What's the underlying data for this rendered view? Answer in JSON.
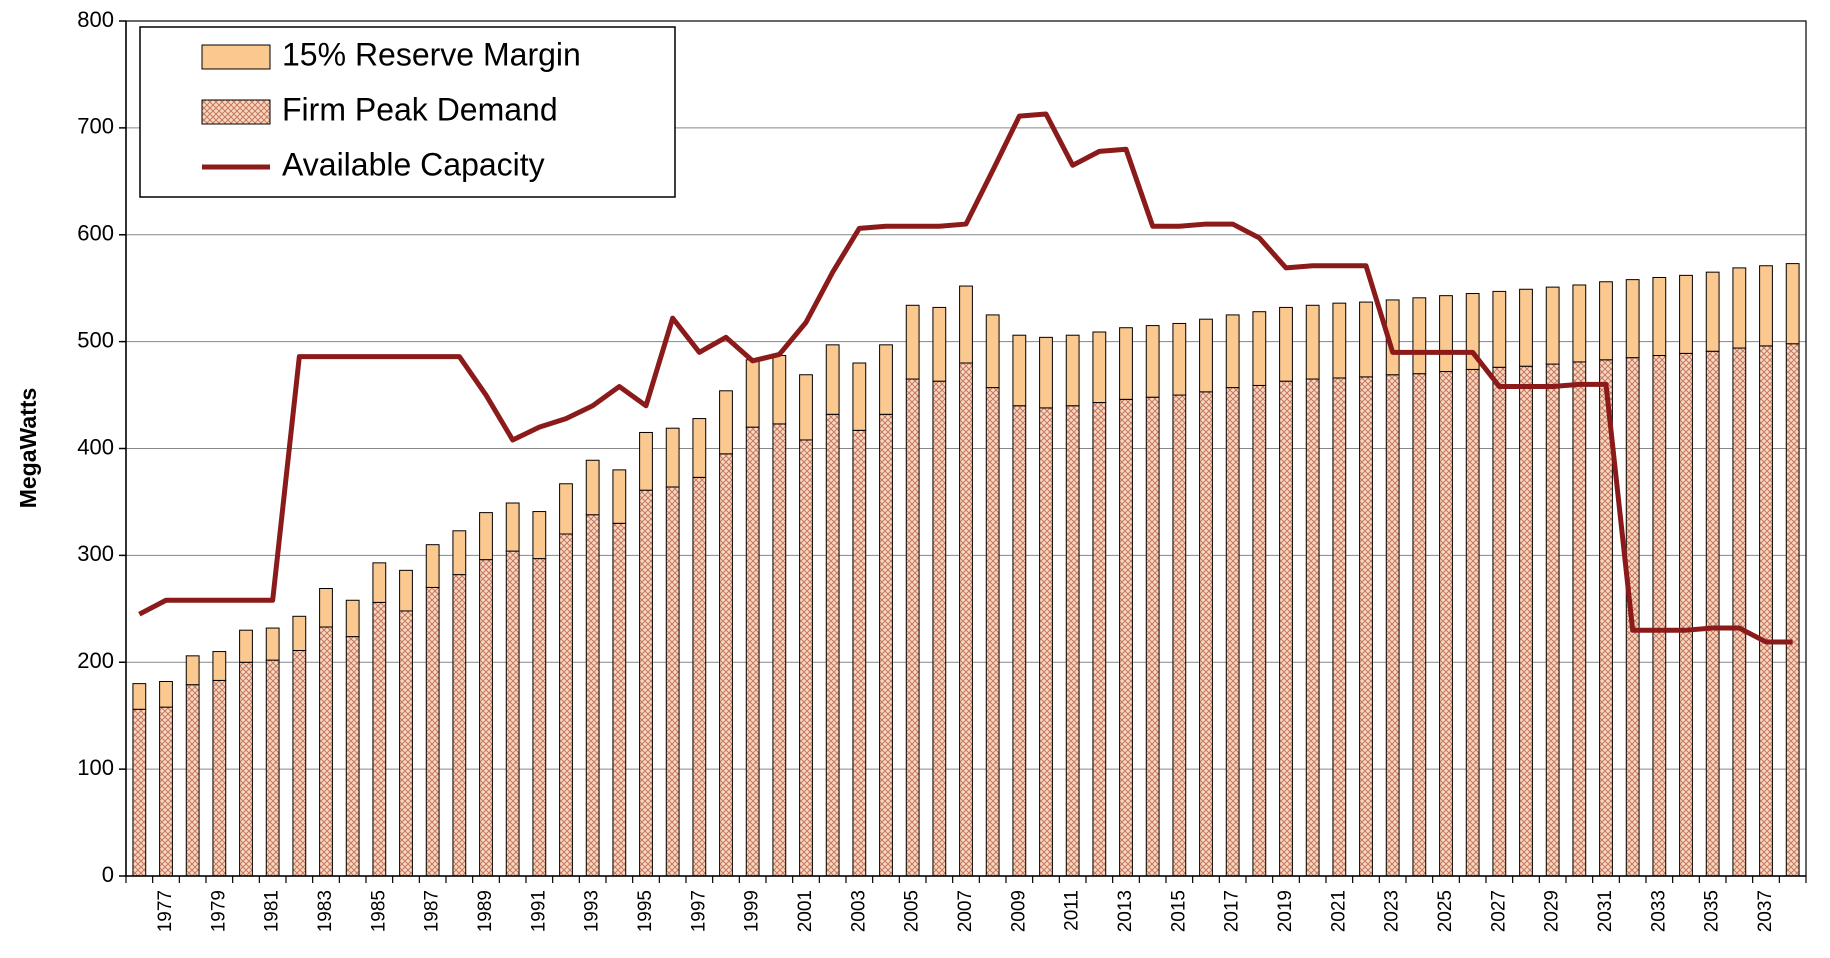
{
  "chart_data": {
    "type": "bar",
    "stacked": true,
    "y_label": "MegaWatts",
    "categories": [
      null,
      "1977",
      null,
      "1979",
      null,
      "1981",
      null,
      "1983",
      null,
      "1985",
      null,
      "1987",
      null,
      "1989",
      null,
      "1991",
      null,
      "1993",
      null,
      "1995",
      null,
      "1997",
      null,
      "1999",
      null,
      "2001",
      null,
      "2003",
      null,
      "2005",
      null,
      "2007",
      null,
      "2009",
      null,
      "2011",
      null,
      "2013",
      null,
      "2015",
      null,
      "2017",
      null,
      "2019",
      null,
      "2021",
      null,
      "2023",
      null,
      "2025",
      null,
      "2027",
      null,
      "2029",
      null,
      "2031",
      null,
      "2033",
      null,
      "2035",
      null,
      "2037",
      null
    ],
    "series": [
      {
        "name": "15% Reserve Margin",
        "type": "bar",
        "color": "#fbc98f",
        "values": [
          24,
          24,
          27,
          27,
          30,
          30,
          32,
          36,
          34,
          37,
          38,
          40,
          41,
          44,
          45,
          44,
          47,
          51,
          50,
          54,
          55,
          55,
          59,
          63,
          64,
          61,
          65,
          63,
          65,
          69,
          69,
          72,
          68,
          66,
          66,
          66,
          66,
          67,
          67,
          67,
          68,
          68,
          69,
          69,
          69,
          70,
          70,
          70,
          71,
          71,
          71,
          71,
          72,
          72,
          72,
          73,
          73,
          73,
          73,
          74,
          75,
          75,
          75
        ]
      },
      {
        "name": "Firm Peak Demand",
        "type": "bar",
        "color": "#f6d8c4",
        "pattern": "crosshatch",
        "values": [
          156,
          158,
          179,
          183,
          200,
          202,
          211,
          233,
          224,
          256,
          248,
          270,
          282,
          296,
          304,
          297,
          320,
          338,
          330,
          361,
          364,
          373,
          395,
          420,
          423,
          408,
          432,
          417,
          432,
          465,
          463,
          480,
          457,
          440,
          438,
          440,
          443,
          446,
          448,
          450,
          453,
          457,
          459,
          463,
          465,
          466,
          467,
          469,
          470,
          472,
          474,
          476,
          477,
          479,
          481,
          483,
          485,
          487,
          489,
          491,
          494,
          496,
          498
        ]
      },
      {
        "name": "Available Capacity",
        "type": "line",
        "color": "#8b1a1a",
        "values": [
          245,
          258,
          258,
          258,
          258,
          258,
          486,
          486,
          486,
          486,
          486,
          486,
          486,
          450,
          408,
          420,
          428,
          440,
          458,
          440,
          522,
          490,
          504,
          482,
          488,
          518,
          565,
          606,
          608,
          608,
          608,
          610,
          660,
          711,
          713,
          665,
          678,
          680,
          608,
          608,
          610,
          610,
          597,
          569,
          571,
          571,
          571,
          490,
          490,
          490,
          490,
          458,
          458,
          458,
          460,
          460,
          230,
          230,
          230,
          232,
          232,
          219,
          219
        ]
      }
    ],
    "ylim": [
      0,
      800
    ],
    "yticks": [
      0,
      100,
      200,
      300,
      400,
      500,
      600,
      700,
      800
    ],
    "grid": true,
    "legend": "upper-left"
  }
}
